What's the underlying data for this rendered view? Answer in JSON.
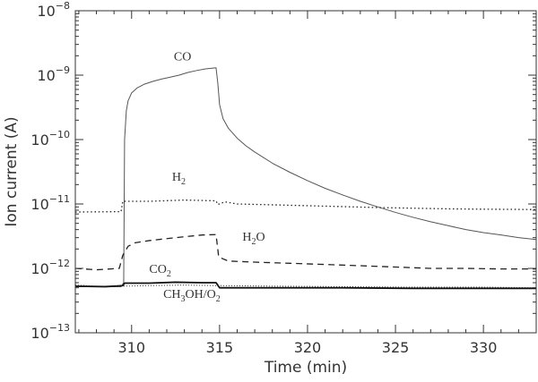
{
  "chart_data": {
    "type": "line",
    "title": "",
    "xlabel": "Time (min)",
    "ylabel": "Ion current (A)",
    "xlim": [
      306.8,
      333
    ],
    "ylim": [
      1e-13,
      1e-08
    ],
    "yscale": "log",
    "x_ticks": [
      310,
      315,
      320,
      325,
      330
    ],
    "y_ticks": [
      {
        "value": 1e-13,
        "mantissa": "10",
        "exponent": "−13"
      },
      {
        "value": 1e-12,
        "mantissa": "10",
        "exponent": "−12"
      },
      {
        "value": 1e-11,
        "mantissa": "10",
        "exponent": "−11"
      },
      {
        "value": 1e-10,
        "mantissa": "10",
        "exponent": "−10"
      },
      {
        "value": 1e-09,
        "mantissa": "10",
        "exponent": "−9"
      },
      {
        "value": 1e-08,
        "mantissa": "10",
        "exponent": "−8"
      }
    ],
    "grid": false,
    "series": [
      {
        "name": "CO",
        "style": "solid-thin",
        "color": "#555555",
        "points": [
          [
            306.8,
            5.2e-13
          ],
          [
            309.4,
            5.2e-13
          ],
          [
            309.55,
            6e-13
          ],
          [
            309.6,
            1e-10
          ],
          [
            309.7,
            2.8e-10
          ],
          [
            309.8,
            4e-10
          ],
          [
            310.0,
            5.3e-10
          ],
          [
            310.3,
            6.3e-10
          ],
          [
            310.7,
            7.2e-10
          ],
          [
            311.2,
            8e-10
          ],
          [
            311.7,
            8.7e-10
          ],
          [
            312.2,
            9.3e-10
          ],
          [
            312.7,
            1e-09
          ],
          [
            313.2,
            1.1e-09
          ],
          [
            313.7,
            1.18e-09
          ],
          [
            314.2,
            1.25e-09
          ],
          [
            314.8,
            1.3e-09
          ],
          [
            314.9,
            7.5e-10
          ],
          [
            315.0,
            3.5e-10
          ],
          [
            315.2,
            2.1e-10
          ],
          [
            315.5,
            1.5e-10
          ],
          [
            316.0,
            1.05e-10
          ],
          [
            316.5,
            8e-11
          ],
          [
            317.0,
            6.4e-11
          ],
          [
            318.0,
            4.3e-11
          ],
          [
            319.0,
            3.1e-11
          ],
          [
            320.0,
            2.3e-11
          ],
          [
            321.0,
            1.75e-11
          ],
          [
            322.0,
            1.38e-11
          ],
          [
            323.0,
            1.1e-11
          ],
          [
            324.0,
            9e-12
          ],
          [
            325.0,
            7.4e-12
          ],
          [
            326.0,
            6.2e-12
          ],
          [
            327.0,
            5.3e-12
          ],
          [
            328.0,
            4.6e-12
          ],
          [
            329.0,
            4e-12
          ],
          [
            330.0,
            3.6e-12
          ],
          [
            331.0,
            3.3e-12
          ],
          [
            332.0,
            3e-12
          ],
          [
            333.0,
            2.8e-12
          ]
        ]
      },
      {
        "name": "H2",
        "style": "dotted",
        "color": "#222222",
        "points": [
          [
            306.8,
            7.5e-12
          ],
          [
            309.4,
            7.6e-12
          ],
          [
            309.5,
            1.1e-11
          ],
          [
            311.0,
            1.1e-11
          ],
          [
            313.0,
            1.15e-11
          ],
          [
            314.8,
            1.12e-11
          ],
          [
            314.9,
            9.8e-12
          ],
          [
            315.3,
            1.08e-11
          ],
          [
            316.0,
            1e-11
          ],
          [
            318.0,
            9.7e-12
          ],
          [
            320.0,
            9.4e-12
          ],
          [
            322.0,
            9.1e-12
          ],
          [
            324.0,
            8.8e-12
          ],
          [
            326.0,
            8.6e-12
          ],
          [
            328.0,
            8.4e-12
          ],
          [
            330.0,
            8.3e-12
          ],
          [
            333.0,
            8.2e-12
          ]
        ]
      },
      {
        "name": "H2O",
        "style": "dashed",
        "color": "#222222",
        "points": [
          [
            306.8,
            1e-12
          ],
          [
            308.0,
            9.5e-13
          ],
          [
            309.3,
            1e-12
          ],
          [
            309.5,
            1.6e-12
          ],
          [
            309.8,
            2.2e-12
          ],
          [
            310.2,
            2.5e-12
          ],
          [
            311.0,
            2.7e-12
          ],
          [
            312.0,
            2.9e-12
          ],
          [
            313.0,
            3.1e-12
          ],
          [
            314.0,
            3.3e-12
          ],
          [
            314.8,
            3.35e-12
          ],
          [
            314.95,
            1.5e-12
          ],
          [
            315.5,
            1.3e-12
          ],
          [
            317.0,
            1.25e-12
          ],
          [
            319.0,
            1.2e-12
          ],
          [
            321.0,
            1.15e-12
          ],
          [
            323.0,
            1.1e-12
          ],
          [
            325.0,
            1.05e-12
          ],
          [
            327.0,
            1e-12
          ],
          [
            329.0,
            1e-12
          ],
          [
            331.0,
            9.8e-13
          ],
          [
            333.0,
            9.8e-13
          ]
        ]
      },
      {
        "name": "CO2",
        "style": "solid-thick",
        "color": "#111111",
        "points": [
          [
            306.8,
            5.3e-13
          ],
          [
            308.5,
            5.2e-13
          ],
          [
            309.5,
            5.4e-13
          ],
          [
            309.6,
            5.9e-13
          ],
          [
            311.0,
            5.9e-13
          ],
          [
            312.5,
            6.1e-13
          ],
          [
            314.0,
            6e-13
          ],
          [
            314.8,
            6e-13
          ],
          [
            315.0,
            5e-13
          ],
          [
            318.0,
            5e-13
          ],
          [
            322.0,
            5e-13
          ],
          [
            326.0,
            4.9e-13
          ],
          [
            330.0,
            4.9e-13
          ],
          [
            333.0,
            4.9e-13
          ]
        ]
      },
      {
        "name": "CH3OH/O2",
        "style": "dotted-fine",
        "color": "#333333",
        "points": [
          [
            306.8,
            5.5e-13
          ],
          [
            308.0,
            5.3e-13
          ],
          [
            309.5,
            5.3e-13
          ],
          [
            311.0,
            5.4e-13
          ],
          [
            313.0,
            5.5e-13
          ],
          [
            315.0,
            5.4e-13
          ],
          [
            318.0,
            5.3e-13
          ],
          [
            322.0,
            5.2e-13
          ],
          [
            326.0,
            5.1e-13
          ],
          [
            330.0,
            5.1e-13
          ],
          [
            333.0,
            5e-13
          ]
        ]
      }
    ],
    "annotations": [
      {
        "series": "CO",
        "parts": [
          {
            "t": "CO"
          }
        ],
        "x": 312.4,
        "y": 1.7e-09
      },
      {
        "series": "H2",
        "parts": [
          {
            "t": "H"
          },
          {
            "t": "2",
            "sub": true
          }
        ],
        "x": 312.3,
        "y": 2.3e-11
      },
      {
        "series": "H2O",
        "parts": [
          {
            "t": "H"
          },
          {
            "t": "2",
            "sub": true
          },
          {
            "t": "O"
          }
        ],
        "x": 316.3,
        "y": 2.7e-12
      },
      {
        "series": "CO2",
        "parts": [
          {
            "t": "CO"
          },
          {
            "t": "2",
            "sub": true
          }
        ],
        "x": 311.0,
        "y": 8.5e-13
      },
      {
        "series": "CH3OH/O2",
        "parts": [
          {
            "t": "CH"
          },
          {
            "t": "3",
            "sub": true
          },
          {
            "t": "OH/O"
          },
          {
            "t": "2",
            "sub": true
          }
        ],
        "x": 311.8,
        "y": 3.5e-13
      }
    ]
  }
}
